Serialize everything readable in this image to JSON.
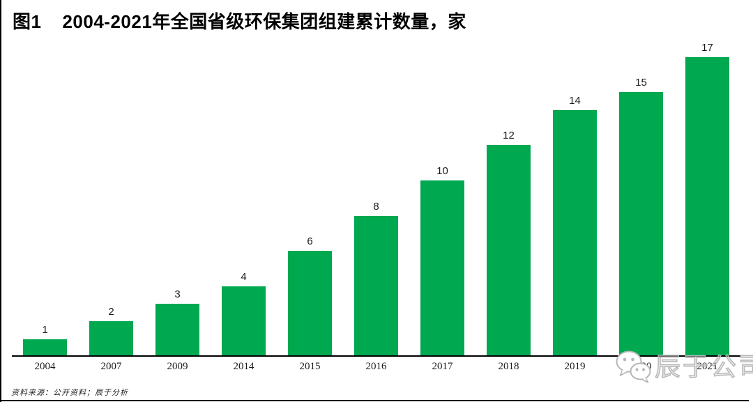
{
  "title": {
    "prefix": "图1",
    "text": "2004-2021年全国省级环保集团组建累计数量，家"
  },
  "source_note": "资料来源：公开资料；辰于分析",
  "watermark": {
    "logo_icon": "wechat-logo-icon",
    "text": "辰于公司"
  },
  "colors": {
    "bar": "#00A850",
    "axis": "#000000",
    "watermark_gray": "#b6b6b6",
    "background": "#ffffff"
  },
  "chart_data": {
    "type": "bar",
    "title": "图1 2004-2021年全国省级环保集团组建累计数量，家",
    "categories": [
      "2004",
      "2007",
      "2009",
      "2014",
      "2015",
      "2016",
      "2017",
      "2018",
      "2019",
      "2020",
      "2021"
    ],
    "values": [
      1,
      2,
      3,
      4,
      6,
      8,
      10,
      12,
      14,
      15,
      17
    ],
    "xlabel": "",
    "ylabel": "",
    "unit": "家",
    "ylim": [
      0,
      17.5
    ],
    "grid": false,
    "legend": false,
    "data_labels": true,
    "bar_color": "#00A850"
  }
}
